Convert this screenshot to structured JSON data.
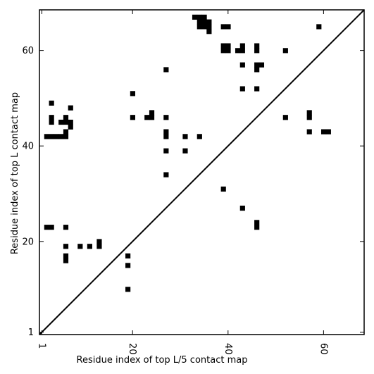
{
  "chart_data": {
    "type": "scatter",
    "marker": "square",
    "title": "",
    "xlabel": "Residue index of top L/5 contact map",
    "ylabel": "Residue index of top L contact map",
    "xlim": [
      0.5,
      68.5
    ],
    "ylim": [
      0.5,
      68.5
    ],
    "xticks": [
      1,
      20,
      40,
      60
    ],
    "yticks": [
      1,
      20,
      40,
      60
    ],
    "xtick_labels": [
      "1",
      "20",
      "40",
      "60"
    ],
    "ytick_labels": [
      "1",
      "20",
      "40",
      "60"
    ],
    "xtick_rotation": -90,
    "diagonal_line": true,
    "grid": false,
    "colors": {
      "marker": "#000000",
      "axes": "#000000",
      "background": "#ffffff"
    },
    "series": [
      {
        "region": "upper-left (top L contacts, y > x)",
        "points": [
          [
            33,
            67
          ],
          [
            34,
            67
          ],
          [
            35,
            67
          ],
          [
            34,
            66
          ],
          [
            35,
            66
          ],
          [
            36,
            66
          ],
          [
            34,
            65
          ],
          [
            35,
            65
          ],
          [
            36,
            65
          ],
          [
            36,
            64
          ],
          [
            39,
            65
          ],
          [
            40,
            65
          ],
          [
            59,
            65
          ],
          [
            39,
            61
          ],
          [
            40,
            61
          ],
          [
            43,
            61
          ],
          [
            46,
            61
          ],
          [
            39,
            60
          ],
          [
            40,
            60
          ],
          [
            42,
            60
          ],
          [
            43,
            60
          ],
          [
            46,
            60
          ],
          [
            52,
            60
          ],
          [
            43,
            57
          ],
          [
            46,
            57
          ],
          [
            47,
            57
          ],
          [
            46,
            56
          ],
          [
            27,
            56
          ],
          [
            43,
            52
          ],
          [
            46,
            52
          ],
          [
            20,
            51
          ],
          [
            3,
            49
          ],
          [
            7,
            48
          ],
          [
            24,
            47
          ],
          [
            57,
            47
          ],
          [
            3,
            46
          ],
          [
            6,
            46
          ],
          [
            20,
            46
          ],
          [
            23,
            46
          ],
          [
            24,
            46
          ],
          [
            27,
            46
          ],
          [
            52,
            46
          ],
          [
            57,
            46
          ],
          [
            3,
            45
          ],
          [
            5,
            45
          ],
          [
            6,
            45
          ],
          [
            7,
            45
          ],
          [
            7,
            44
          ],
          [
            6,
            43
          ],
          [
            27,
            43
          ],
          [
            57,
            43
          ],
          [
            60,
            43
          ],
          [
            61,
            43
          ],
          [
            2,
            42
          ],
          [
            3,
            42
          ],
          [
            4,
            42
          ],
          [
            5,
            42
          ],
          [
            6,
            42
          ],
          [
            27,
            42
          ],
          [
            31,
            42
          ],
          [
            34,
            42
          ],
          [
            27,
            39
          ],
          [
            31,
            39
          ],
          [
            27,
            34
          ]
        ]
      },
      {
        "region": "lower-right (top L/5 contacts, y < x)",
        "points": [
          [
            39,
            31
          ],
          [
            43,
            27
          ],
          [
            46,
            24
          ],
          [
            46,
            23
          ],
          [
            2,
            23
          ],
          [
            3,
            23
          ],
          [
            6,
            23
          ],
          [
            13,
            20
          ],
          [
            6,
            19
          ],
          [
            9,
            19
          ],
          [
            11,
            19
          ],
          [
            13,
            19
          ],
          [
            6,
            17
          ],
          [
            19,
            17
          ],
          [
            6,
            16
          ],
          [
            19,
            15
          ],
          [
            19,
            10
          ]
        ]
      }
    ]
  }
}
